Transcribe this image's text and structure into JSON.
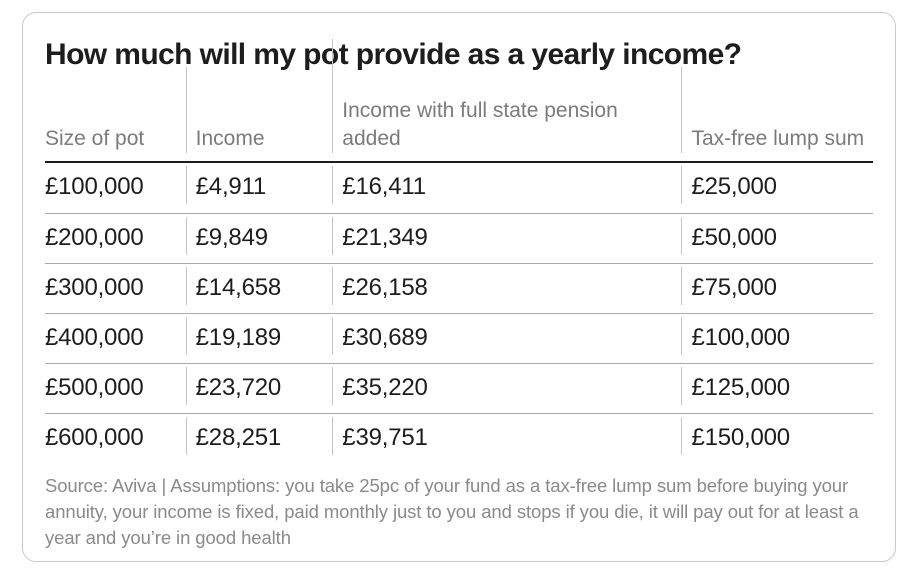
{
  "chart_data": {
    "type": "table",
    "title": "How much will my pot provide as a yearly income?",
    "columns": [
      "Size of pot",
      "Income",
      "Income with full state pension added",
      "Tax-free lump sum"
    ],
    "rows": [
      [
        "£100,000",
        "£4,911",
        "£16,411",
        "£25,000"
      ],
      [
        "£200,000",
        "£9,849",
        "£21,349",
        "£50,000"
      ],
      [
        "£300,000",
        "£14,658",
        "£26,158",
        "£75,000"
      ],
      [
        "£400,000",
        "£19,189",
        "£30,689",
        "£100,000"
      ],
      [
        "£500,000",
        "£23,720",
        "£35,220",
        "£125,000"
      ],
      [
        "£600,000",
        "£28,251",
        "£39,751",
        "£150,000"
      ]
    ],
    "source": "Source: Aviva | Assumptions: you take 25pc of your fund as a tax-free lump sum before buying your annuity, your income is fixed, paid monthly just to you and stops if you die, it will pay out for at least a year and you’re in good health",
    "layout": {
      "legend": "none",
      "grid": "horizontal-rules",
      "header_alignment": "bottom",
      "column_width_ratio": [
        141,
        147,
        350,
        192
      ]
    }
  },
  "colors": {
    "card_border": "#c9c9c9",
    "title_text": "#1d1d1d",
    "header_text": "#7b7b7b",
    "body_text": "#1d1d1d",
    "header_rule": "#1d1d1d",
    "row_rule": "#a9a9a9",
    "column_divider": "#c5c5c5",
    "footnote_text": "#8a8a8a",
    "background": "#ffffff"
  }
}
